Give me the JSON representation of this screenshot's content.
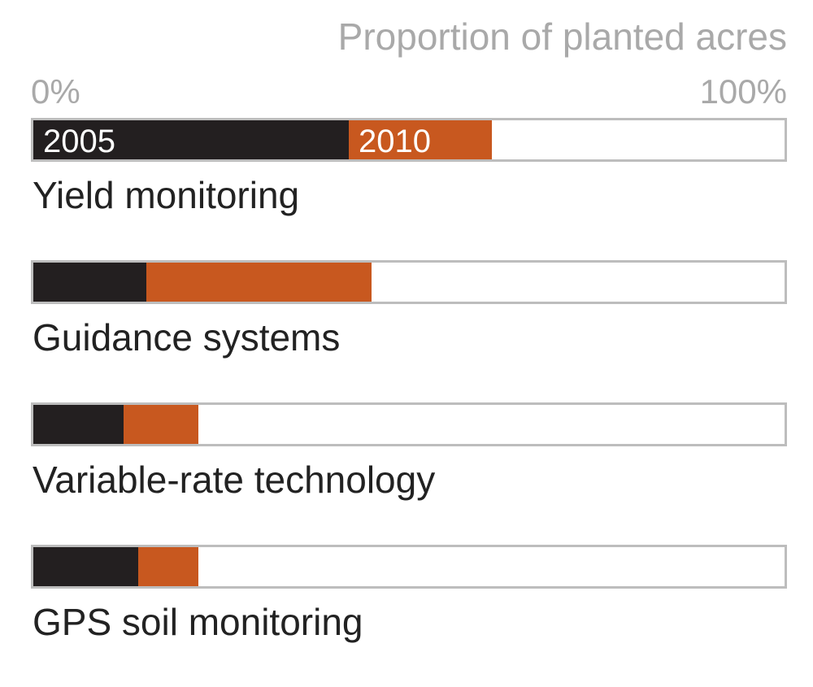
{
  "chart_data": {
    "type": "bar",
    "title": "Proportion of planted acres",
    "xlim": [
      0,
      100
    ],
    "tick_labels": [
      "0%",
      "100%"
    ],
    "categories": [
      "Yield monitoring",
      "Guidance systems",
      "Variable-rate technology",
      "GPS soil monitoring"
    ],
    "series": [
      {
        "name": "2005",
        "values": [
          42,
          15,
          12,
          14
        ],
        "color": "#231f20"
      },
      {
        "name": "2010",
        "values": [
          61,
          45,
          22,
          22
        ],
        "color": "#c8581f"
      }
    ],
    "in_bar_series_labels": [
      "2005",
      "2010"
    ],
    "track_color": "#ffffff",
    "track_border_color": "#bdbdbd",
    "grid": false,
    "legend": "none"
  }
}
